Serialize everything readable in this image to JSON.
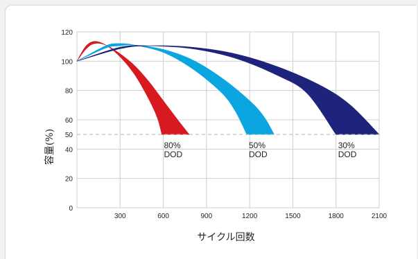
{
  "chart_data": {
    "type": "area",
    "title": "",
    "xlabel": "サイクル回数",
    "ylabel": "容量(%)",
    "xlim": [
      0,
      2100
    ],
    "ylim": [
      0,
      120
    ],
    "x_ticks": [
      "300",
      "600",
      "900",
      "1200",
      "1500",
      "1800",
      "2100"
    ],
    "y_ticks": [
      "0",
      "20",
      "40",
      "50",
      "60",
      "80",
      "100",
      "120"
    ],
    "reference_line": {
      "y": 50
    },
    "grid": true,
    "series": [
      {
        "label_lines": [
          "80%",
          "DOD"
        ],
        "color": "#d71920",
        "upper": [
          [
            0,
            100
          ],
          [
            60,
            110
          ],
          [
            120,
            113.5
          ],
          [
            200,
            111
          ],
          [
            300,
            103
          ],
          [
            400,
            91
          ],
          [
            500,
            74
          ],
          [
            560,
            61
          ],
          [
            590,
            50
          ]
        ],
        "lower": [
          [
            0,
            100
          ],
          [
            60,
            108
          ],
          [
            120,
            112
          ],
          [
            200,
            111
          ],
          [
            300,
            105
          ],
          [
            400,
            97
          ],
          [
            500,
            86
          ],
          [
            600,
            73
          ],
          [
            700,
            60
          ],
          [
            780,
            50
          ]
        ]
      },
      {
        "label_lines": [
          "50%",
          "DOD"
        ],
        "color": "#0ba5e2",
        "upper": [
          [
            0,
            100
          ],
          [
            200,
            110.5
          ],
          [
            300,
            112
          ],
          [
            400,
            111
          ],
          [
            600,
            106
          ],
          [
            800,
            95
          ],
          [
            1000,
            79
          ],
          [
            1100,
            66
          ],
          [
            1180,
            50
          ]
        ],
        "lower": [
          [
            0,
            100
          ],
          [
            200,
            109
          ],
          [
            300,
            110.5
          ],
          [
            400,
            111
          ],
          [
            600,
            108
          ],
          [
            800,
            101
          ],
          [
            1000,
            89
          ],
          [
            1200,
            73
          ],
          [
            1300,
            62
          ],
          [
            1370,
            50
          ]
        ]
      },
      {
        "label_lines": [
          "30%",
          "DOD"
        ],
        "color": "#1e237c",
        "upper": [
          [
            0,
            100
          ],
          [
            300,
            109.5
          ],
          [
            500,
            110.5
          ],
          [
            800,
            108.5
          ],
          [
            1100,
            102
          ],
          [
            1400,
            90
          ],
          [
            1600,
            78
          ],
          [
            1800,
            50
          ]
        ],
        "lower": [
          [
            0,
            100
          ],
          [
            300,
            108.5
          ],
          [
            500,
            110.5
          ],
          [
            800,
            109.5
          ],
          [
            1100,
            105
          ],
          [
            1400,
            96
          ],
          [
            1700,
            83
          ],
          [
            1900,
            70
          ],
          [
            2100,
            50
          ]
        ]
      }
    ]
  }
}
